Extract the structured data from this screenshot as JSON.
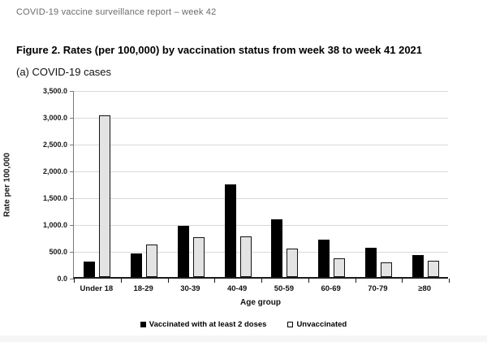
{
  "page": {
    "header": "COVID-19 vaccine surveillance report – week 42",
    "title": "Figure 2. Rates (per 100,000) by vaccination status from week 38 to week 41 2021",
    "subtitle": "(a) COVID-19 cases"
  },
  "chart_data": {
    "type": "bar",
    "title": "",
    "categories": [
      "Under 18",
      "18-29",
      "30-39",
      "40-49",
      "50-59",
      "60-69",
      "70-79",
      "≥80"
    ],
    "series": [
      {
        "name": "Vaccinated with at least 2 doses",
        "color": "#000000",
        "values": [
          290,
          435,
          960,
          1720,
          1070,
          700,
          550,
          415
        ]
      },
      {
        "name": "Unvaccinated",
        "color": "#e3e3e3",
        "values": [
          3010,
          605,
          750,
          765,
          530,
          350,
          270,
          310
        ]
      }
    ],
    "xlabel": "Age group",
    "ylabel": "Rate per 100,000",
    "ylim": [
      0,
      3500
    ],
    "ytick_step": 500,
    "ytick_labels": [
      "0.0",
      "500.0",
      "1,000.0",
      "1,500.0",
      "2,000.0",
      "2,500.0",
      "3,000.0",
      "3,500.0"
    ],
    "grid": true,
    "legend_position": "bottom"
  },
  "colors": {
    "grid": "#d9d9d9",
    "bar_vaccinated": "#000000",
    "bar_unvaccinated": "#e3e3e3",
    "header_text": "#6b6b6b"
  }
}
